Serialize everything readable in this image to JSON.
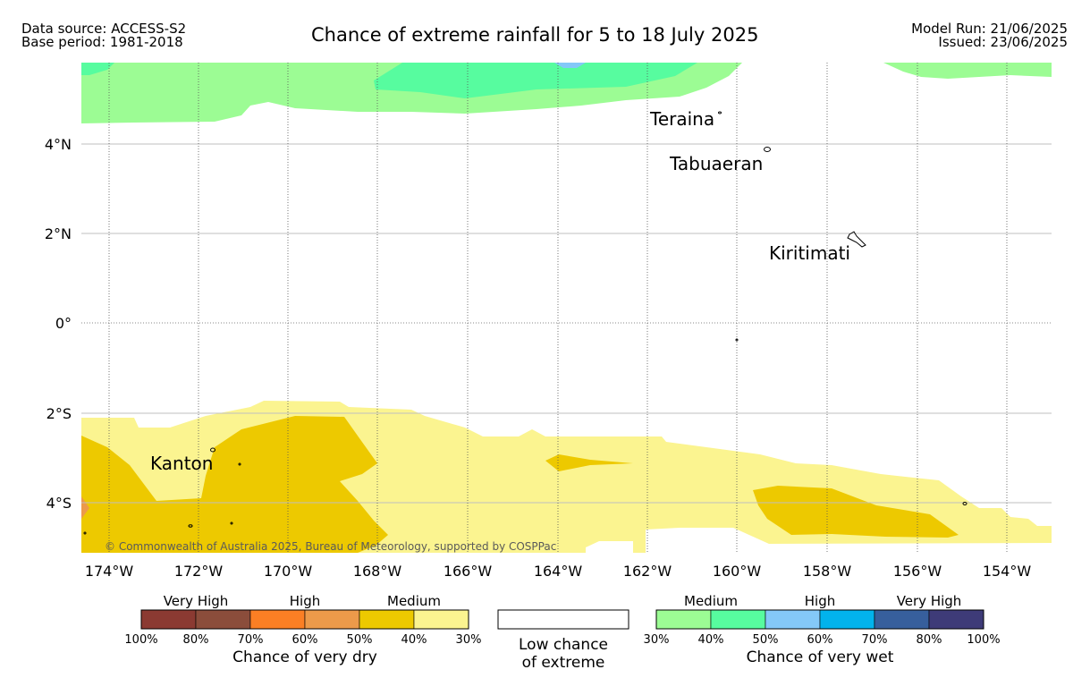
{
  "header": {
    "data_source": "Data source: ACCESS-S2",
    "base_period": "Base period: 1981-2018",
    "model_run": "Model Run: 21/06/2025",
    "issued": "Issued: 23/06/2025",
    "title": "Chance of extreme rainfall for 5 to 18 July 2025"
  },
  "map": {
    "lat_labels": [
      "4°N",
      "2°N",
      "0°",
      "2°S",
      "4°S"
    ],
    "lon_labels": [
      "174°W",
      "172°W",
      "170°W",
      "168°W",
      "166°W",
      "164°W",
      "162°W",
      "160°W",
      "158°W",
      "156°W",
      "154°W"
    ],
    "places": [
      "Teraina",
      "Tabuaeran",
      "Kiritimati",
      "Kanton"
    ],
    "copyright": "© Commonwealth of Australia 2025, Bureau of Meteorology, supported by COSPPac"
  },
  "legend": {
    "dry": {
      "categories": [
        "Very High",
        "High",
        "Medium"
      ],
      "colors": [
        "#8b3a32",
        "#8b4d3b",
        "#fb7f24",
        "#ec9a4a",
        "#edc900",
        "#fbf490"
      ],
      "ticks": [
        "100%",
        "80%",
        "70%",
        "60%",
        "50%",
        "40%",
        "30%"
      ],
      "caption": "Chance of very dry"
    },
    "low": {
      "line1": "Low chance",
      "line2": "of extreme",
      "color": "#ffffff"
    },
    "wet": {
      "categories": [
        "Medium",
        "High",
        "Very High"
      ],
      "colors": [
        "#9cfc94",
        "#57fc9f",
        "#84c8f8",
        "#02b3ec",
        "#375f9c",
        "#3e3b78"
      ],
      "ticks": [
        "30%",
        "40%",
        "50%",
        "60%",
        "70%",
        "80%",
        "100%"
      ],
      "caption": "Chance of very wet"
    }
  }
}
